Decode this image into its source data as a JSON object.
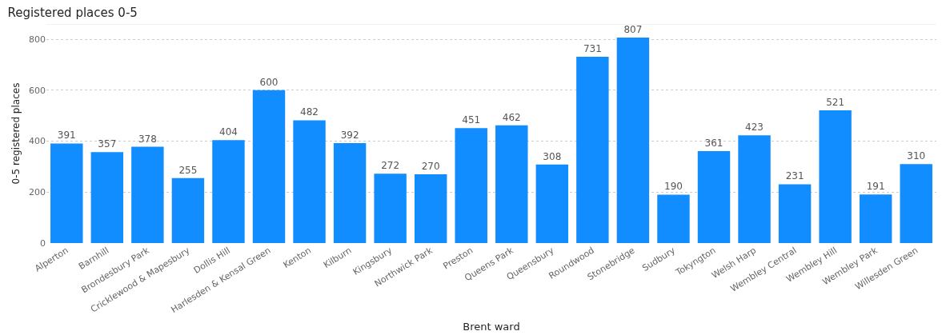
{
  "chart_data": {
    "type": "bar",
    "title": "Registered places 0-5",
    "xlabel": "Brent ward",
    "ylabel": "0-5 registered places",
    "categories": [
      "Alperton",
      "Barnhill",
      "Brondesbury Park",
      "Cricklewood & Mapesbury",
      "Dollis Hill",
      "Harlesden & Kensal Green",
      "Kenton",
      "Kilburn",
      "Kingsbury",
      "Northwick Park",
      "Preston",
      "Queens Park",
      "Queensbury",
      "Roundwood",
      "Stonebridge",
      "Sudbury",
      "Tokyngton",
      "Welsh Harp",
      "Wembley Central",
      "Wembley Hill",
      "Wembley Park",
      "Willesden Green"
    ],
    "values": [
      391,
      357,
      378,
      255,
      404,
      600,
      482,
      392,
      272,
      270,
      451,
      462,
      308,
      731,
      807,
      190,
      361,
      423,
      231,
      521,
      191,
      310
    ],
    "color": "#118dff",
    "ylim": [
      0,
      860
    ],
    "yticks": [
      0,
      200,
      400,
      600,
      800
    ],
    "grid": "y",
    "data_labels": true
  }
}
